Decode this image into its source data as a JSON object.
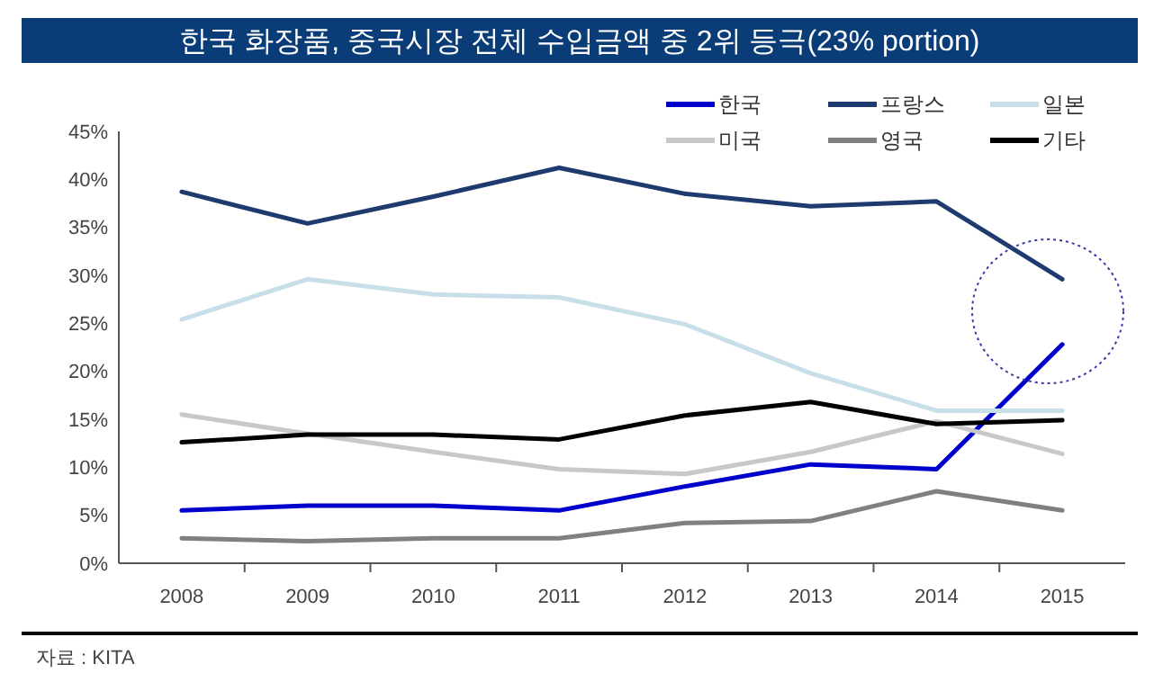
{
  "chart_data": {
    "type": "line",
    "title": "한국 화장품, 중국시장 전체 수입금액 중 2위 등극(23% portion)",
    "annotations": [
      "자료 : KITA"
    ],
    "categories": [
      "2008",
      "2009",
      "2010",
      "2011",
      "2012",
      "2013",
      "2014",
      "2015"
    ],
    "series": [
      {
        "name": "한국",
        "color": "#0000cc",
        "values": [
          5.5,
          6.0,
          6.0,
          5.5,
          8.0,
          10.3,
          9.8,
          22.8
        ]
      },
      {
        "name": "프랑스",
        "color": "#1f3a6e",
        "values": [
          38.7,
          35.4,
          38.2,
          41.2,
          38.5,
          37.2,
          37.7,
          29.6
        ]
      },
      {
        "name": "일본",
        "color": "#c8dfea",
        "values": [
          25.4,
          29.6,
          28.0,
          27.7,
          24.9,
          19.8,
          15.9,
          15.9
        ]
      },
      {
        "name": "미국",
        "color": "#c8c8c8",
        "values": [
          15.5,
          13.5,
          11.6,
          9.8,
          9.3,
          11.6,
          14.8,
          11.4
        ]
      },
      {
        "name": "영국",
        "color": "#808080",
        "values": [
          2.6,
          2.3,
          2.6,
          2.6,
          4.2,
          4.4,
          7.5,
          5.5
        ]
      },
      {
        "name": "기타",
        "color": "#000000",
        "values": [
          12.6,
          13.4,
          13.4,
          12.9,
          15.4,
          16.8,
          14.5,
          14.9
        ]
      }
    ],
    "ylim": [
      0,
      45
    ],
    "yticks": [
      {
        "value": 0,
        "label": "0%"
      },
      {
        "value": 5,
        "label": "5%"
      },
      {
        "value": 10,
        "label": "10%"
      },
      {
        "value": 15,
        "label": "15%"
      },
      {
        "value": 20,
        "label": "20%"
      },
      {
        "value": 25,
        "label": "25%"
      },
      {
        "value": 30,
        "label": "30%"
      },
      {
        "value": 35,
        "label": "35%"
      },
      {
        "value": 40,
        "label": "40%"
      },
      {
        "value": 45,
        "label": "45%"
      }
    ],
    "grid": false,
    "legend": "top right",
    "marker": "none",
    "line_style": "solid"
  }
}
